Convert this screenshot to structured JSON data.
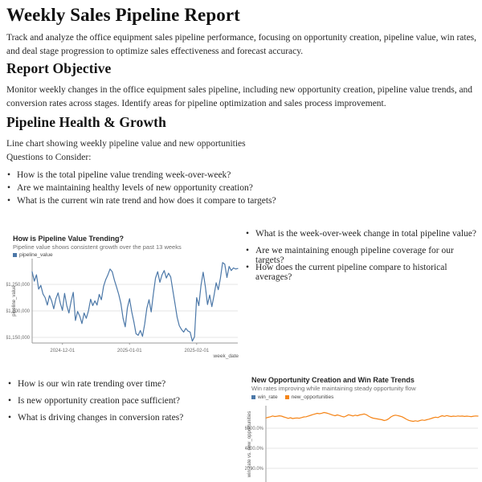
{
  "report": {
    "title": "Weekly Sales Pipeline Report",
    "intro": "Track and analyze the office equipment sales pipeline performance, focusing on opportunity creation, pipeline value, win rates, and deal stage progression to optimize sales effectiveness and forecast accuracy.",
    "objective_heading": "Report Objective",
    "objective_text": "Monitor weekly changes in the office equipment sales pipeline, including new opportunity creation, pipeline value trends, and conversion rates across stages. Identify areas for pipeline optimization and sales process improvement.",
    "growth_heading": "Pipeline Health & Growth",
    "growth_caption": "Line chart showing weekly pipeline value and new opportunities",
    "questions_label": "Questions to Consider:",
    "questions_primary": [
      "How is the total pipeline value trending week-over-week?",
      "Are we maintaining healthy levels of new opportunity creation?",
      "What is the current win rate trend and how does it compare to targets?"
    ],
    "questions_pipeline": [
      "What is the week-over-week change in total pipeline value?",
      "Are we maintaining enough pipeline coverage for our targets?",
      "How does the current pipeline compare to historical averages?"
    ],
    "questions_winrate": [
      "How is our win rate trending over time?",
      "Is new opportunity creation pace sufficient?",
      "What is driving changes in conversion rates?"
    ]
  },
  "colors": {
    "series_blue": "#4c78a8",
    "series_orange": "#f58518",
    "gridline": "#e6e6e6",
    "axis": "#9a9a9a"
  },
  "chart_data": [
    {
      "type": "line",
      "title": "How is Pipeline Value Trending?",
      "subtitle": "Pipeline value shows consistent growth over the past 13 weeks",
      "xlabel": "week_date",
      "ylabel": "pipeline_value",
      "x_start": "2024-11-17",
      "x_end": "2025-02-20",
      "x_ticks": [
        "2024-12-01",
        "2025-01-01",
        "2025-02-01"
      ],
      "y_ticks": [
        {
          "label": "$1,250,000",
          "value": 1250000
        },
        {
          "label": "$1,200,000",
          "value": 1200000
        },
        {
          "label": "$1,150,000",
          "value": 1150000
        }
      ],
      "ylim": [
        1140000,
        1295000
      ],
      "grid": true,
      "legend_position": "top-left",
      "series": [
        {
          "name": "pipeline_value",
          "color": "#4c78a8",
          "values": [
            1274000,
            1256000,
            1268000,
            1241000,
            1248000,
            1232000,
            1225000,
            1211000,
            1229000,
            1219000,
            1204000,
            1223000,
            1234000,
            1215000,
            1201000,
            1233000,
            1210000,
            1196000,
            1218000,
            1235000,
            1182000,
            1199000,
            1190000,
            1176000,
            1196000,
            1186000,
            1200000,
            1222000,
            1210000,
            1219000,
            1211000,
            1231000,
            1221000,
            1246000,
            1259000,
            1268000,
            1279000,
            1274000,
            1258000,
            1245000,
            1231000,
            1214000,
            1186000,
            1170000,
            1206000,
            1223000,
            1198000,
            1179000,
            1157000,
            1154000,
            1163000,
            1152000,
            1175000,
            1205000,
            1221000,
            1198000,
            1232000,
            1262000,
            1274000,
            1254000,
            1268000,
            1276000,
            1262000,
            1271000,
            1264000,
            1238000,
            1213000,
            1188000,
            1172000,
            1165000,
            1160000,
            1167000,
            1162000,
            1160000,
            1143000,
            1151000,
            1225000,
            1210000,
            1248000,
            1273000,
            1246000,
            1212000,
            1230000,
            1208000,
            1229000,
            1253000,
            1240000,
            1262000,
            1291000,
            1288000,
            1263000,
            1284000,
            1276000,
            1281000,
            1279000,
            1280000
          ]
        }
      ]
    },
    {
      "type": "line",
      "title": "New Opportunity Creation and Win Rate Trends",
      "subtitle": "Win rates improving while maintaining steady opportunity flow",
      "ylabel": "win_rate vs. new_opportunities",
      "y_ticks": [
        {
          "label": "6000.0%",
          "value": 6000
        },
        {
          "label": "4000.0%",
          "value": 4000
        },
        {
          "label": "2000.0%",
          "value": 2000
        }
      ],
      "grid": true,
      "legend_position": "top-left",
      "note": "Chart is cropped at the bottom edge of the screenshot; win_rate line not visible in the cropped area.",
      "series": [
        {
          "name": "win_rate",
          "color": "#4c78a8",
          "values": []
        },
        {
          "name": "new_opportunities",
          "color": "#f58518",
          "values": [
            7020,
            7080,
            7140,
            7220,
            7160,
            7190,
            7230,
            7200,
            7120,
            7060,
            6980,
            7040,
            6960,
            7000,
            7020,
            6990,
            7060,
            7120,
            7140,
            7210,
            7280,
            7350,
            7420,
            7480,
            7440,
            7490,
            7560,
            7520,
            7460,
            7380,
            7300,
            7240,
            7320,
            7260,
            7180,
            7120,
            7220,
            7340,
            7280,
            7220,
            7300,
            7240,
            7320,
            7360,
            7420,
            7340,
            7200,
            7080,
            7000,
            6960,
            6920,
            6880,
            6840,
            6760,
            6820,
            6940,
            7120,
            7240,
            7300,
            7260,
            7200,
            7140,
            7020,
            6880,
            6780,
            6720,
            6680,
            6740,
            6690,
            6760,
            6820,
            6780,
            6840,
            6900,
            6960,
            7040,
            7100,
            7060,
            7160,
            7240,
            7180,
            7260,
            7200,
            7160,
            7200,
            7180,
            7220,
            7190,
            7210,
            7170,
            7200,
            7180,
            7150,
            7190,
            7220,
            7200
          ]
        }
      ]
    }
  ]
}
